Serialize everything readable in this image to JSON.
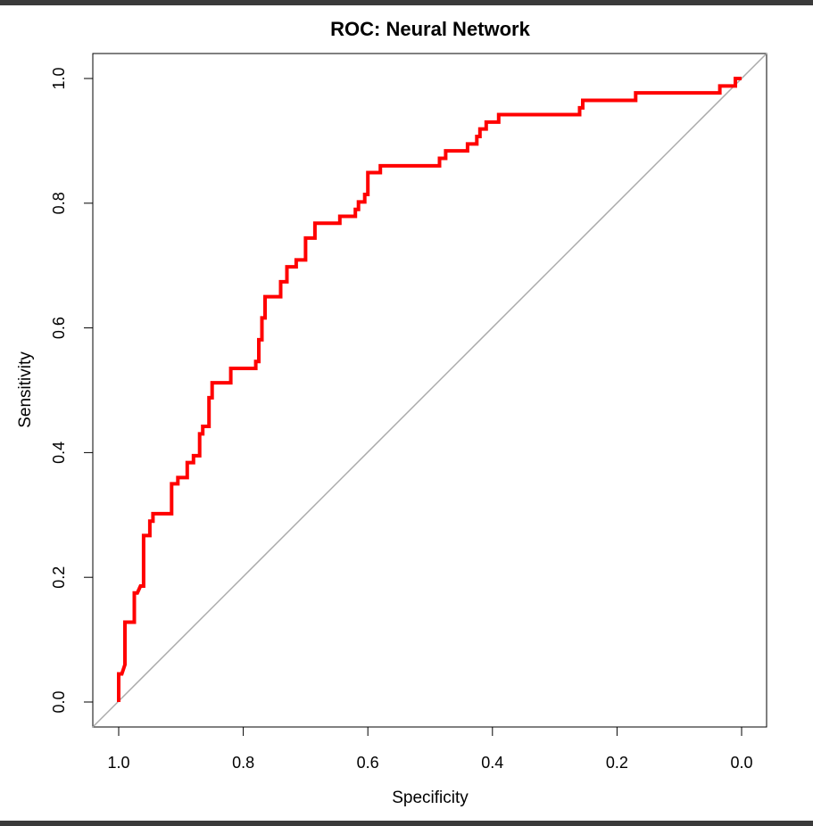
{
  "chart_data": {
    "type": "line",
    "title": "ROC: Neural Network",
    "xlabel": "Specificity",
    "ylabel": "Sensitivity",
    "xlim": [
      1.0,
      0.0
    ],
    "ylim": [
      0.0,
      1.0
    ],
    "x_reversed": true,
    "x_ticks": [
      "1.0",
      "0.8",
      "0.6",
      "0.4",
      "0.2",
      "0.0"
    ],
    "y_ticks": [
      "0.0",
      "0.2",
      "0.4",
      "0.6",
      "0.8",
      "1.0"
    ],
    "grid": false,
    "legend": "none",
    "reference_line": {
      "from": [
        1.0,
        0.0
      ],
      "to": [
        0.0,
        1.0
      ],
      "color": "#aaaaaa"
    },
    "series": [
      {
        "color": "#ff0000",
        "specificity": [
          1.0,
          1.0,
          0.995,
          0.99,
          0.99,
          0.975,
          0.975,
          0.97,
          0.965,
          0.96,
          0.96,
          0.95,
          0.95,
          0.945,
          0.945,
          0.915,
          0.915,
          0.905,
          0.905,
          0.89,
          0.89,
          0.88,
          0.88,
          0.87,
          0.87,
          0.865,
          0.865,
          0.855,
          0.855,
          0.85,
          0.85,
          0.82,
          0.82,
          0.78,
          0.78,
          0.775,
          0.775,
          0.77,
          0.77,
          0.765,
          0.765,
          0.74,
          0.74,
          0.73,
          0.73,
          0.715,
          0.715,
          0.7,
          0.7,
          0.685,
          0.685,
          0.645,
          0.645,
          0.62,
          0.62,
          0.615,
          0.615,
          0.605,
          0.605,
          0.6,
          0.6,
          0.58,
          0.58,
          0.485,
          0.485,
          0.475,
          0.475,
          0.44,
          0.44,
          0.425,
          0.425,
          0.42,
          0.42,
          0.41,
          0.41,
          0.39,
          0.39,
          0.26,
          0.26,
          0.255,
          0.255,
          0.17,
          0.17,
          0.035,
          0.035,
          0.01,
          0.01,
          0.0
        ],
        "sensitivity": [
          0.0,
          0.045,
          0.045,
          0.06,
          0.128,
          0.128,
          0.175,
          0.175,
          0.186,
          0.186,
          0.267,
          0.267,
          0.29,
          0.29,
          0.302,
          0.302,
          0.35,
          0.35,
          0.36,
          0.36,
          0.384,
          0.384,
          0.395,
          0.395,
          0.43,
          0.43,
          0.442,
          0.442,
          0.488,
          0.488,
          0.512,
          0.512,
          0.535,
          0.535,
          0.546,
          0.546,
          0.581,
          0.581,
          0.616,
          0.616,
          0.65,
          0.65,
          0.674,
          0.674,
          0.698,
          0.698,
          0.709,
          0.709,
          0.744,
          0.744,
          0.768,
          0.768,
          0.779,
          0.779,
          0.79,
          0.79,
          0.802,
          0.802,
          0.814,
          0.814,
          0.849,
          0.849,
          0.86,
          0.86,
          0.872,
          0.872,
          0.884,
          0.884,
          0.895,
          0.895,
          0.907,
          0.907,
          0.919,
          0.919,
          0.93,
          0.93,
          0.942,
          0.942,
          0.953,
          0.953,
          0.965,
          0.965,
          0.977,
          0.977,
          0.988,
          0.988,
          1.0,
          1.0
        ]
      }
    ]
  }
}
